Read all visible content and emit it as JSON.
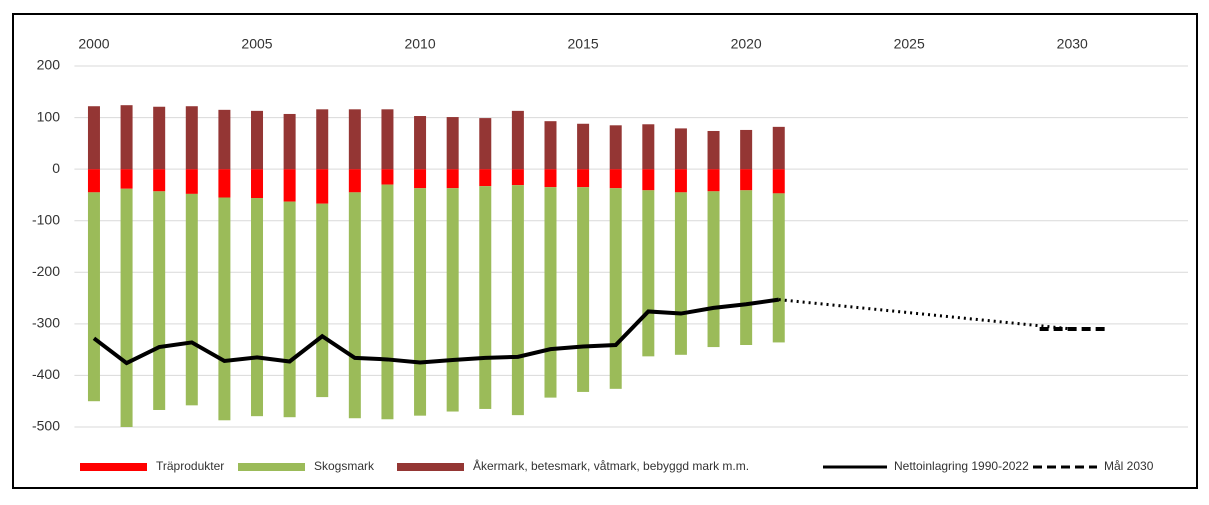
{
  "chart_data": {
    "type": "bar",
    "x": [
      2000,
      2001,
      2002,
      2003,
      2004,
      2005,
      2006,
      2007,
      2008,
      2009,
      2010,
      2011,
      2012,
      2013,
      2014,
      2015,
      2016,
      2017,
      2018,
      2019,
      2020,
      2021
    ],
    "series": [
      {
        "name": "Träprodukter",
        "color": "#ff0000",
        "kind": "bar",
        "values": [
          -45,
          -38,
          -43,
          -48,
          -55,
          -56,
          -63,
          -67,
          -45,
          -30,
          -37,
          -37,
          -33,
          -31,
          -35,
          -35,
          -37,
          -41,
          -45,
          -43,
          -41,
          -47
        ]
      },
      {
        "name": "Skogsmark",
        "color": "#9bbb59",
        "kind": "bar",
        "values": [
          -405,
          -462,
          -424,
          -410,
          -432,
          -423,
          -418,
          -375,
          -438,
          -455,
          -441,
          -433,
          -432,
          -446,
          -408,
          -397,
          -389,
          -322,
          -315,
          -302,
          -300,
          -289
        ]
      },
      {
        "name": "Åkermark, betesmark, våtmark, bebyggd mark m.m.",
        "color": "#943634",
        "kind": "bar",
        "values": [
          122,
          124,
          121,
          122,
          115,
          113,
          107,
          116,
          116,
          116,
          103,
          101,
          99,
          113,
          93,
          88,
          85,
          87,
          79,
          74,
          76,
          82
        ]
      },
      {
        "name": "Nettoinlagring 1990-2022",
        "color": "#000000",
        "kind": "line",
        "style": "solid",
        "x": [
          2000,
          2001,
          2002,
          2003,
          2004,
          2005,
          2006,
          2007,
          2008,
          2009,
          2010,
          2011,
          2012,
          2013,
          2014,
          2015,
          2016,
          2017,
          2018,
          2019,
          2020,
          2021
        ],
        "values": [
          -328,
          -376,
          -345,
          -336,
          -372,
          -365,
          -373,
          -324,
          -366,
          -369,
          -375,
          -370,
          -366,
          -364,
          -349,
          -344,
          -341,
          -276,
          -280,
          -269,
          -262,
          -253
        ]
      },
      {
        "color": "#000000",
        "kind": "line",
        "style": "dotted",
        "x": [
          2021,
          2030
        ],
        "values": [
          -253,
          -310
        ]
      },
      {
        "name": "Mål 2030",
        "color": "#000000",
        "kind": "line",
        "style": "dashed",
        "x": [
          2029,
          2031
        ],
        "values": [
          -310,
          -310
        ]
      }
    ],
    "xlim": [
      1999.4,
      2033.55
    ],
    "xticks": [
      2000,
      2005,
      2010,
      2015,
      2020,
      2025,
      2030
    ],
    "ylim": [
      -500,
      200
    ],
    "yticks": [
      -500,
      -400,
      -300,
      -200,
      -100,
      0,
      100,
      200
    ],
    "grid": true
  }
}
